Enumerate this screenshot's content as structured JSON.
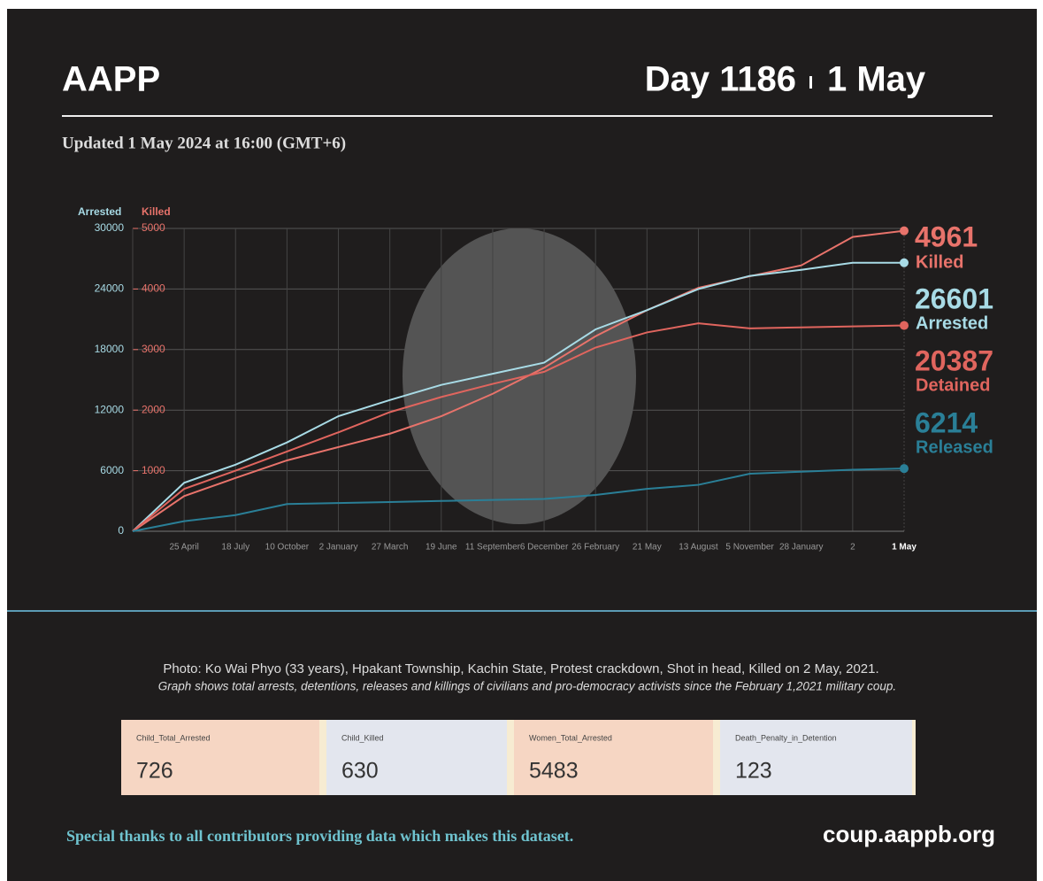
{
  "header": {
    "title": "AAPP",
    "day": "Day 1186",
    "date": "1 May",
    "updated": "Updated 1 May 2024 at 16:00 (GMT+6)"
  },
  "chart_data": {
    "type": "line",
    "ylabel": "Arrested",
    "y2label": "Killed",
    "categories": [
      null,
      "25 April",
      "18 July",
      "10 October",
      "2 January",
      "27 March",
      "19 June",
      "11 September",
      "6 December",
      "26 February",
      "21 May",
      "13 August",
      "5 November",
      "28 January",
      "2",
      "1 May"
    ],
    "series": [
      {
        "name": "Killed",
        "color": "#e8736b",
        "axis": "y2",
        "values": [
          0,
          580,
          880,
          1170,
          1390,
          1610,
          1900,
          2270,
          2700,
          3220,
          3650,
          4020,
          4210,
          4390,
          4860,
          4961
        ]
      },
      {
        "name": "Arrested",
        "color": "#a8dbe6",
        "values": [
          0,
          4800,
          6600,
          8800,
          11400,
          13000,
          14500,
          15600,
          16700,
          20000,
          21900,
          24000,
          25300,
          25900,
          26600,
          26601
        ]
      },
      {
        "name": "Detained",
        "color": "#e0655e",
        "values": [
          0,
          4200,
          6000,
          7900,
          9800,
          11800,
          13300,
          14600,
          15800,
          18200,
          19700,
          20600,
          20100,
          20200,
          20300,
          20387
        ]
      },
      {
        "name": "Released",
        "color": "#2a7f97",
        "values": [
          0,
          1000,
          1600,
          2700,
          2800,
          2900,
          3000,
          3100,
          3200,
          3600,
          4200,
          4600,
          5700,
          5900,
          6100,
          6214
        ]
      }
    ],
    "ylim": [
      0,
      30000
    ],
    "yticks": [
      0,
      6000,
      12000,
      18000,
      24000,
      30000
    ],
    "y2lim": [
      0,
      5000
    ],
    "y2ticks": [
      1000,
      2000,
      3000,
      4000,
      5000
    ],
    "grid": true
  },
  "caption": "Photo: Ko Wai Phyo (33 years), Hpakant Township, Kachin State, Protest crackdown, Shot in head, Killed on 2 May, 2021.",
  "note": "Graph shows total arrests, detentions, releases and killings of civilians and pro-democracy activists since the February 1,2021 military coup.",
  "stats": [
    {
      "label": "Child_Total_Arrested",
      "value": "726"
    },
    {
      "label": "Child_Killed",
      "value": "630"
    },
    {
      "label": "Women_Total_Arrested",
      "value": "5483"
    },
    {
      "label": "Death_Penalty_in_Detention",
      "value": "123"
    }
  ],
  "footer": {
    "thanks": "Special thanks to all contributors providing data which makes this dataset.",
    "url": "coup.aappb.org"
  }
}
